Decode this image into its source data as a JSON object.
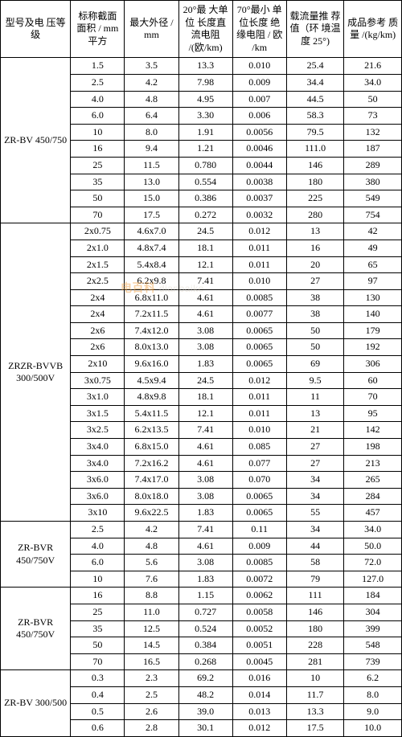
{
  "watermark": {
    "cn": "电百科",
    "en": "dianbaike"
  },
  "headers": {
    "model": "型号及电\n压等级",
    "area": "标称截面\n面积\n/ mm 平方",
    "od": "最大外径\n/ mm",
    "res20": "20°最\n大单位\n长度直\n流电阻\n/(欧/km)",
    "res70": "70°最小\n单位长度\n绝缘电阻\n/ 欧\n/km",
    "amp": "载流量推\n荐值（环\n境温度\n25°)",
    "mass": "成品参考\n质量\n/(kg/km)"
  },
  "groups": [
    {
      "model": "ZR-BV 450/750",
      "rows": [
        [
          "1.5",
          "3.5",
          "13.3",
          "0.010",
          "25.4",
          "21.6"
        ],
        [
          "2.5",
          "4.2",
          "7.98",
          "0.009",
          "34.4",
          "34.0"
        ],
        [
          "4.0",
          "4.8",
          "4.95",
          "0.007",
          "44.5",
          "50"
        ],
        [
          "6.0",
          "6.4",
          "3.30",
          "0.006",
          "58.3",
          "73"
        ],
        [
          "10",
          "8.0",
          "1.91",
          "0.0056",
          "79.5",
          "132"
        ],
        [
          "16",
          "9.4",
          "1.21",
          "0.0046",
          "111.0",
          "187"
        ],
        [
          "25",
          "11.5",
          "0.780",
          "0.0044",
          "146",
          "289"
        ],
        [
          "35",
          "13.0",
          "0.554",
          "0.0038",
          "180",
          "380"
        ],
        [
          "50",
          "15.0",
          "0.386",
          "0.0037",
          "225",
          "549"
        ],
        [
          "70",
          "17.5",
          "0.272",
          "0.0032",
          "280",
          "754"
        ]
      ]
    },
    {
      "model": "ZRZR-BVVB\n300/500V",
      "rows": [
        [
          "2x0.75",
          "4.6x7.0",
          "24.5",
          "0.012",
          "13",
          "42"
        ],
        [
          "2x1.0",
          "4.8x7.4",
          "18.1",
          "0.011",
          "16",
          "49"
        ],
        [
          "2x1.5",
          "5.4x8.4",
          "12.1",
          "0.011",
          "20",
          "65"
        ],
        [
          "2x2.5",
          "6.2x9.8",
          "7.41",
          "0.010",
          "27",
          "97"
        ],
        [
          "2x4",
          "6.8x11.0",
          "4.61",
          "0.0085",
          "38",
          "130"
        ],
        [
          "2x4",
          "7.2x11.5",
          "4.61",
          "0.0077",
          "38",
          "140"
        ],
        [
          "2x6",
          "7.4x12.0",
          "3.08",
          "0.0065",
          "50",
          "179"
        ],
        [
          "2x6",
          "8.0x13.0",
          "3.08",
          "0.0065",
          "50",
          "192"
        ],
        [
          "2x10",
          "9.6x16.0",
          "1.83",
          "0.0065",
          "69",
          "306"
        ],
        [
          "3x0.75",
          "4.5x9.4",
          "24.5",
          "0.012",
          "9.5",
          "60"
        ],
        [
          "3x1.0",
          "4.8x9.8",
          "18.1",
          "0.011",
          "11",
          "70"
        ],
        [
          "3x1.5",
          "5.4x11.5",
          "12.1",
          "0.011",
          "13",
          "95"
        ],
        [
          "3x2.5",
          "6.2x13.5",
          "7.41",
          "0.010",
          "21",
          "142"
        ],
        [
          "3x4.0",
          "6.8x15.0",
          "4.61",
          "0.085",
          "27",
          "198"
        ],
        [
          "3x4.0",
          "7.2x16.2",
          "4.61",
          "0.077",
          "27",
          "213"
        ],
        [
          "3x6.0",
          "7.4x17.0",
          "3.08",
          "0.070",
          "34",
          "265"
        ],
        [
          "3x6.0",
          "8.0x18.0",
          "3.08",
          "0.0065",
          "34",
          "284"
        ],
        [
          "3x10",
          "9.6x22.5",
          "1.83",
          "0.0065",
          "55",
          "457"
        ]
      ]
    },
    {
      "model": "ZR-BVR\n450/750V",
      "rows": [
        [
          "2.5",
          "4.2",
          "7.41",
          "0.11",
          "34",
          "34.0"
        ],
        [
          "4.0",
          "4.8",
          "4.61",
          "0.009",
          "44",
          "50.0"
        ],
        [
          "6.0",
          "5.6",
          "3.08",
          "0.0085",
          "58",
          "72.0"
        ],
        [
          "10",
          "7.6",
          "1.83",
          "0.0072",
          "79",
          "127.0"
        ]
      ]
    },
    {
      "model": "ZR-BVR 450/750V",
      "rows": [
        [
          "16",
          "8.8",
          "1.15",
          "0.0062",
          "111",
          "184"
        ],
        [
          "25",
          "11.0",
          "0.727",
          "0.0058",
          "146",
          "304"
        ],
        [
          "35",
          "12.5",
          "0.524",
          "0.0052",
          "180",
          "399"
        ],
        [
          "50",
          "14.5",
          "0.384",
          "0.0051",
          "228",
          "548"
        ],
        [
          "70",
          "16.5",
          "0.268",
          "0.0045",
          "281",
          "739"
        ]
      ]
    },
    {
      "model": "ZR-BV 300/500",
      "rows": [
        [
          "0.3",
          "2.3",
          "69.2",
          "0.016",
          "10",
          "6.2"
        ],
        [
          "0.4",
          "2.5",
          "48.2",
          "0.014",
          "11.7",
          "8.0"
        ],
        [
          "0.5",
          "2.6",
          "39.0",
          "0.013",
          "13.3",
          "9.0"
        ],
        [
          "0.6",
          "2.8",
          "30.1",
          "0.012",
          "17.5",
          "10.0"
        ]
      ]
    }
  ]
}
